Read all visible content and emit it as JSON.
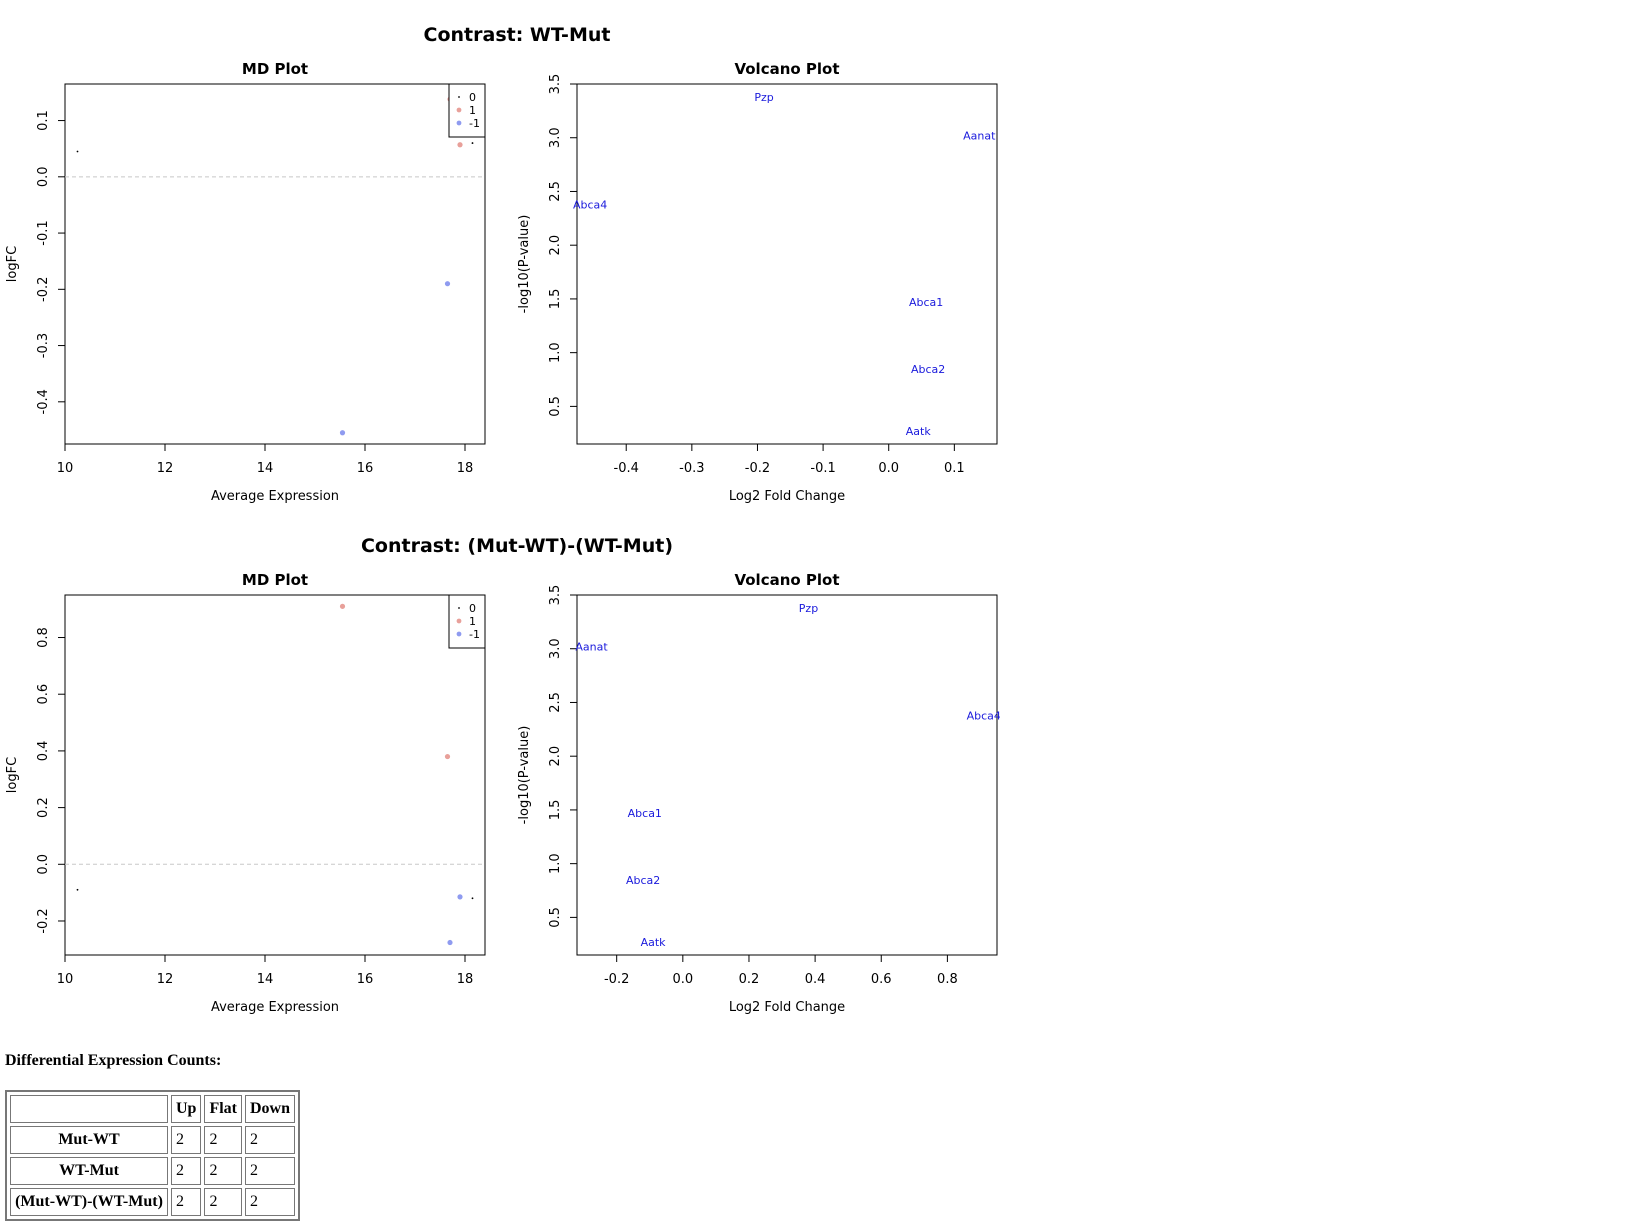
{
  "colors": {
    "zero": "#000000",
    "up": "#e8a09a",
    "down": "#8f9bf0",
    "label": "#1a1adc",
    "guide": "#c8c8c8"
  },
  "chart_data": [
    {
      "contrast_title": "Contrast: WT-Mut",
      "md_plot": {
        "type": "scatter",
        "title": "MD Plot",
        "xlabel": "Average Expression",
        "ylabel": "logFC",
        "xlim": [
          10,
          18.4
        ],
        "ylim": [
          -0.475,
          0.165
        ],
        "xticks": [
          10,
          12,
          14,
          16,
          18
        ],
        "yticks": [
          -0.4,
          -0.3,
          -0.2,
          -0.1,
          0.0,
          0.1
        ],
        "ytick_labels": [
          "-0.4",
          "-0.3",
          "-0.2",
          "-0.1",
          "0.0",
          "0.1"
        ],
        "legend": {
          "position": "top-right",
          "entries": [
            "0",
            "1",
            "-1"
          ]
        },
        "points": [
          {
            "x": 10.25,
            "y": 0.045,
            "status": 0
          },
          {
            "x": 17.7,
            "y": 0.138,
            "status": 1
          },
          {
            "x": 17.9,
            "y": 0.057,
            "status": 1
          },
          {
            "x": 18.15,
            "y": 0.06,
            "status": 0
          },
          {
            "x": 17.65,
            "y": -0.19,
            "status": -1
          },
          {
            "x": 15.55,
            "y": -0.455,
            "status": -1
          }
        ]
      },
      "volcano_plot": {
        "type": "scatter",
        "title": "Volcano Plot",
        "xlabel": "Log2 Fold Change",
        "ylabel": "-log10(P-value)",
        "xlim": [
          -0.475,
          0.165
        ],
        "ylim": [
          0.15,
          3.5
        ],
        "xticks": [
          -0.4,
          -0.3,
          -0.2,
          -0.1,
          0.0,
          0.1
        ],
        "xtick_labels": [
          "-0.4",
          "-0.3",
          "-0.2",
          "-0.1",
          "0.0",
          "0.1"
        ],
        "yticks": [
          0.5,
          1.0,
          1.5,
          2.0,
          2.5,
          3.0,
          3.5
        ],
        "ytick_labels": [
          "0.5",
          "1.0",
          "1.5",
          "2.0",
          "2.5",
          "3.0",
          "3.5"
        ],
        "genes": [
          {
            "label": "Pzp",
            "x": -0.19,
            "y": 3.38
          },
          {
            "label": "Aanat",
            "x": 0.138,
            "y": 3.02
          },
          {
            "label": "Abca4",
            "x": -0.455,
            "y": 2.38
          },
          {
            "label": "Abca1",
            "x": 0.057,
            "y": 1.47
          },
          {
            "label": "Abca2",
            "x": 0.06,
            "y": 0.85
          },
          {
            "label": "Aatk",
            "x": 0.045,
            "y": 0.27
          }
        ]
      }
    },
    {
      "contrast_title": "Contrast: (Mut-WT)-(WT-Mut)",
      "md_plot": {
        "type": "scatter",
        "title": "MD Plot",
        "xlabel": "Average Expression",
        "ylabel": "logFC",
        "xlim": [
          10,
          18.4
        ],
        "ylim": [
          -0.32,
          0.95
        ],
        "xticks": [
          10,
          12,
          14,
          16,
          18
        ],
        "yticks": [
          -0.2,
          0.0,
          0.2,
          0.4,
          0.6,
          0.8
        ],
        "ytick_labels": [
          "-0.2",
          "0.0",
          "0.2",
          "0.4",
          "0.6",
          "0.8"
        ],
        "legend": {
          "position": "top-right",
          "entries": [
            "0",
            "1",
            "-1"
          ]
        },
        "points": [
          {
            "x": 10.25,
            "y": -0.09,
            "status": 0
          },
          {
            "x": 15.55,
            "y": 0.91,
            "status": 1
          },
          {
            "x": 17.65,
            "y": 0.38,
            "status": 1
          },
          {
            "x": 17.9,
            "y": -0.115,
            "status": -1
          },
          {
            "x": 18.15,
            "y": -0.12,
            "status": 0
          },
          {
            "x": 17.7,
            "y": -0.276,
            "status": -1
          }
        ]
      },
      "volcano_plot": {
        "type": "scatter",
        "title": "Volcano Plot",
        "xlabel": "Log2 Fold Change",
        "ylabel": "-log10(P-value)",
        "xlim": [
          -0.32,
          0.95
        ],
        "ylim": [
          0.15,
          3.5
        ],
        "xticks": [
          -0.2,
          0.0,
          0.2,
          0.4,
          0.6,
          0.8
        ],
        "xtick_labels": [
          "-0.2",
          "0.0",
          "0.2",
          "0.4",
          "0.6",
          "0.8"
        ],
        "yticks": [
          0.5,
          1.0,
          1.5,
          2.0,
          2.5,
          3.0,
          3.5
        ],
        "ytick_labels": [
          "0.5",
          "1.0",
          "1.5",
          "2.0",
          "2.5",
          "3.0",
          "3.5"
        ],
        "genes": [
          {
            "label": "Pzp",
            "x": 0.38,
            "y": 3.38
          },
          {
            "label": "Aanat",
            "x": -0.276,
            "y": 3.02
          },
          {
            "label": "Abca4",
            "x": 0.91,
            "y": 2.38
          },
          {
            "label": "Abca1",
            "x": -0.115,
            "y": 1.47
          },
          {
            "label": "Abca2",
            "x": -0.12,
            "y": 0.85
          },
          {
            "label": "Aatk",
            "x": -0.09,
            "y": 0.27
          }
        ]
      }
    }
  ],
  "counts": {
    "heading": "Differential Expression Counts:",
    "columns": [
      "Up",
      "Flat",
      "Down"
    ],
    "rows": [
      {
        "label": "Mut-WT",
        "values": [
          2,
          2,
          2
        ]
      },
      {
        "label": "WT-Mut",
        "values": [
          2,
          2,
          2
        ]
      },
      {
        "label": "(Mut-WT)-(WT-Mut)",
        "values": [
          2,
          2,
          2
        ]
      }
    ]
  }
}
